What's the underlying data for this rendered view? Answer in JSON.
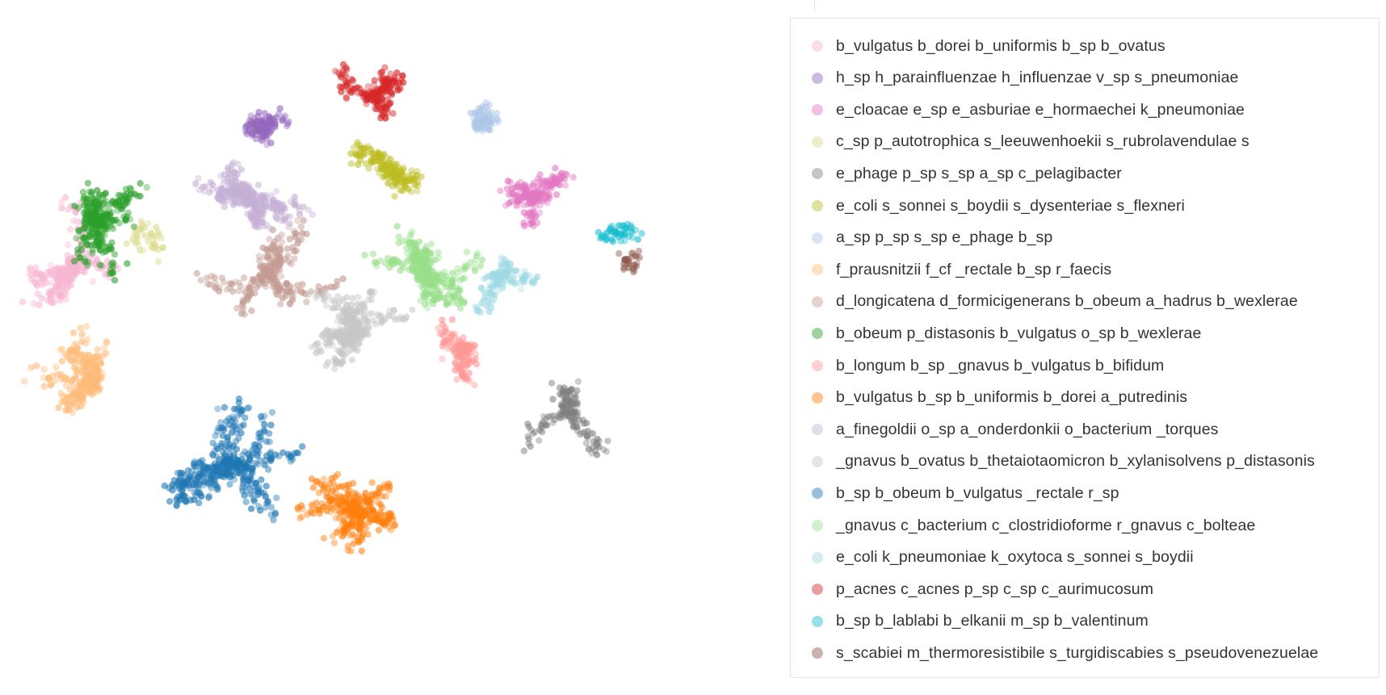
{
  "chart_data": {
    "type": "scatter",
    "title": "",
    "xlabel": "",
    "ylabel": "",
    "grid": false,
    "legend": "right",
    "xlim": [
      -100,
      100
    ],
    "ylim": [
      -100,
      100
    ],
    "series": [
      {
        "name": "b_vulgatus b_dorei b_uniformis b_sp b_ovatus",
        "color": "#f7b6d2",
        "center": [
          -80,
          20
        ]
      },
      {
        "name": "h_sp h_parainfluenzae h_influenzae v_sp s_pneumoniae",
        "color": "#9467bd",
        "center": [
          -30,
          62
        ]
      },
      {
        "name": "e_cloacae e_sp e_asburiae e_hormaechei k_pneumoniae",
        "color": "#e377c2",
        "center": [
          52,
          40
        ]
      },
      {
        "name": "c_sp p_autotrophica s_leeuwenhoekii s_rubrolavendulae s",
        "color": "#dbdb8d",
        "center": [
          -60,
          30
        ]
      },
      {
        "name": "e_phage p_sp s_sp a_sp c_pelagibacter",
        "color": "#7f7f7f",
        "center": [
          62,
          -30
        ]
      },
      {
        "name": "e_coli s_sonnei s_boydii s_dysenteriae s_flexneri",
        "color": "#bcbd22",
        "center": [
          10,
          48
        ]
      },
      {
        "name": "a_sp p_sp s_sp e_phage b_sp",
        "color": "#aec7e8",
        "center": [
          35,
          62
        ]
      },
      {
        "name": "f_prausnitzii f_cf _rectale b_sp r_faecis",
        "color": "#ffbb78",
        "center": [
          -75,
          -20
        ]
      },
      {
        "name": "d_longicatena d_formicigenerans b_obeum a_hadrus b_wexlerae",
        "color": "#c49c94",
        "center": [
          -25,
          15
        ]
      },
      {
        "name": "b_obeum p_distasonis b_vulgatus o_sp b_wexlerae",
        "color": "#2ca02c",
        "center": [
          -75,
          32
        ]
      },
      {
        "name": "b_longum b_sp _gnavus b_vulgatus b_bifidum",
        "color": "#ff9896",
        "center": [
          32,
          -10
        ]
      },
      {
        "name": "b_vulgatus b_sp b_uniformis b_dorei a_putredinis",
        "color": "#ff7f0e",
        "center": [
          0,
          -60
        ]
      },
      {
        "name": "a_finegoldii o_sp a_onderdonkii o_bacterium _torques",
        "color": "#c5b0d5",
        "center": [
          -30,
          40
        ]
      },
      {
        "name": "_gnavus b_ovatus b_thetaiotaomicron b_xylanisolvens p_distasonis",
        "color": "#c7c7c7",
        "center": [
          0,
          -5
        ]
      },
      {
        "name": "b_sp b_obeum b_vulgatus _rectale r_sp",
        "color": "#1f77b4",
        "center": [
          -35,
          -45
        ]
      },
      {
        "name": "_gnavus c_bacterium c_clostridioforme r_gnavus c_bolteae",
        "color": "#98df8a",
        "center": [
          20,
          15
        ]
      },
      {
        "name": "e_coli k_pneumoniae k_oxytoca s_sonnei s_boydii",
        "color": "#9edae5",
        "center": [
          40,
          15
        ]
      },
      {
        "name": "p_acnes c_acnes p_sp c_sp c_aurimucosum",
        "color": "#d62728",
        "center": [
          5,
          72
        ]
      },
      {
        "name": "b_sp b_lablabi b_elkanii m_sp b_valentinum",
        "color": "#17becf",
        "center": [
          75,
          30
        ]
      },
      {
        "name": "s_scabiei m_thermoresistibile s_turgidiscabies s_pseudovenezuelae",
        "color": "#8c564b",
        "center": [
          78,
          20
        ]
      }
    ]
  }
}
